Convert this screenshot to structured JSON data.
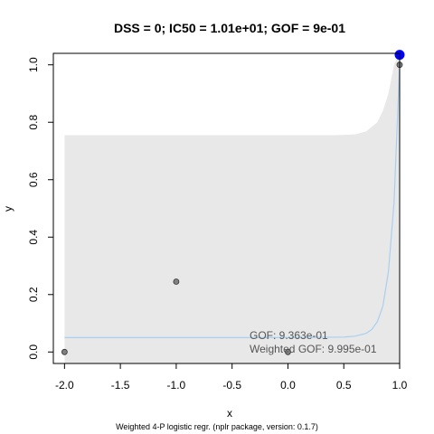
{
  "chart_data": {
    "type": "scatter",
    "title": "DSS = 0; IC50 = 1.01e+01; GOF = 9e-01",
    "xlabel": "x",
    "ylabel": "y",
    "xlim": [
      -2.1,
      1.0
    ],
    "ylim": [
      -0.04,
      1.04
    ],
    "x_ticks": [
      -2.0,
      -1.5,
      -1.0,
      -0.5,
      0.0,
      0.5,
      1.0
    ],
    "x_tick_labels": [
      "-2.0",
      "-1.5",
      "-1.0",
      "-0.5",
      "0.0",
      "0.5",
      "1.0"
    ],
    "y_ticks": [
      0.0,
      0.2,
      0.4,
      0.6,
      0.8,
      1.0
    ],
    "y_tick_labels": [
      "0.0",
      "0.2",
      "0.4",
      "0.6",
      "0.8",
      "1.0"
    ],
    "points": {
      "x": [
        -2.0,
        -1.0,
        0.0,
        1.0
      ],
      "y": [
        0.0,
        0.245,
        0.0,
        1.0
      ],
      "color": "#808080"
    },
    "highlight_point": {
      "x": 1.0,
      "y": 1.035,
      "color": "#0000ff"
    },
    "fit_curve": {
      "color": "#a8cff0",
      "x": [
        -2.0,
        -1.0,
        0.0,
        0.5,
        0.6,
        0.7,
        0.75,
        0.8,
        0.85,
        0.9,
        0.95,
        1.0
      ],
      "y": [
        0.05,
        0.05,
        0.05,
        0.052,
        0.055,
        0.065,
        0.078,
        0.105,
        0.16,
        0.28,
        0.52,
        1.0
      ]
    },
    "confidence_band": {
      "color": "#e8e8e8",
      "x": [
        -2.0,
        -1.0,
        0.0,
        0.3,
        0.4,
        0.5,
        0.6,
        0.7,
        0.8,
        0.85,
        0.9,
        0.95,
        1.0
      ],
      "upper": [
        0.755,
        0.755,
        0.755,
        0.755,
        0.755,
        0.756,
        0.758,
        0.768,
        0.8,
        0.84,
        0.9,
        1.0,
        1.04
      ],
      "lower": [
        -0.04,
        -0.04,
        -0.04,
        -0.04,
        -0.04,
        -0.04,
        -0.04,
        -0.04,
        -0.04,
        -0.04,
        -0.04,
        -0.04,
        -0.04
      ]
    },
    "annotations": [
      "GOF: 9.363e-01",
      "Weighted GOF: 9.995e-01"
    ],
    "footer": "Weighted 4-P logistic regr. (nplr package, version: 0.1.7)"
  }
}
